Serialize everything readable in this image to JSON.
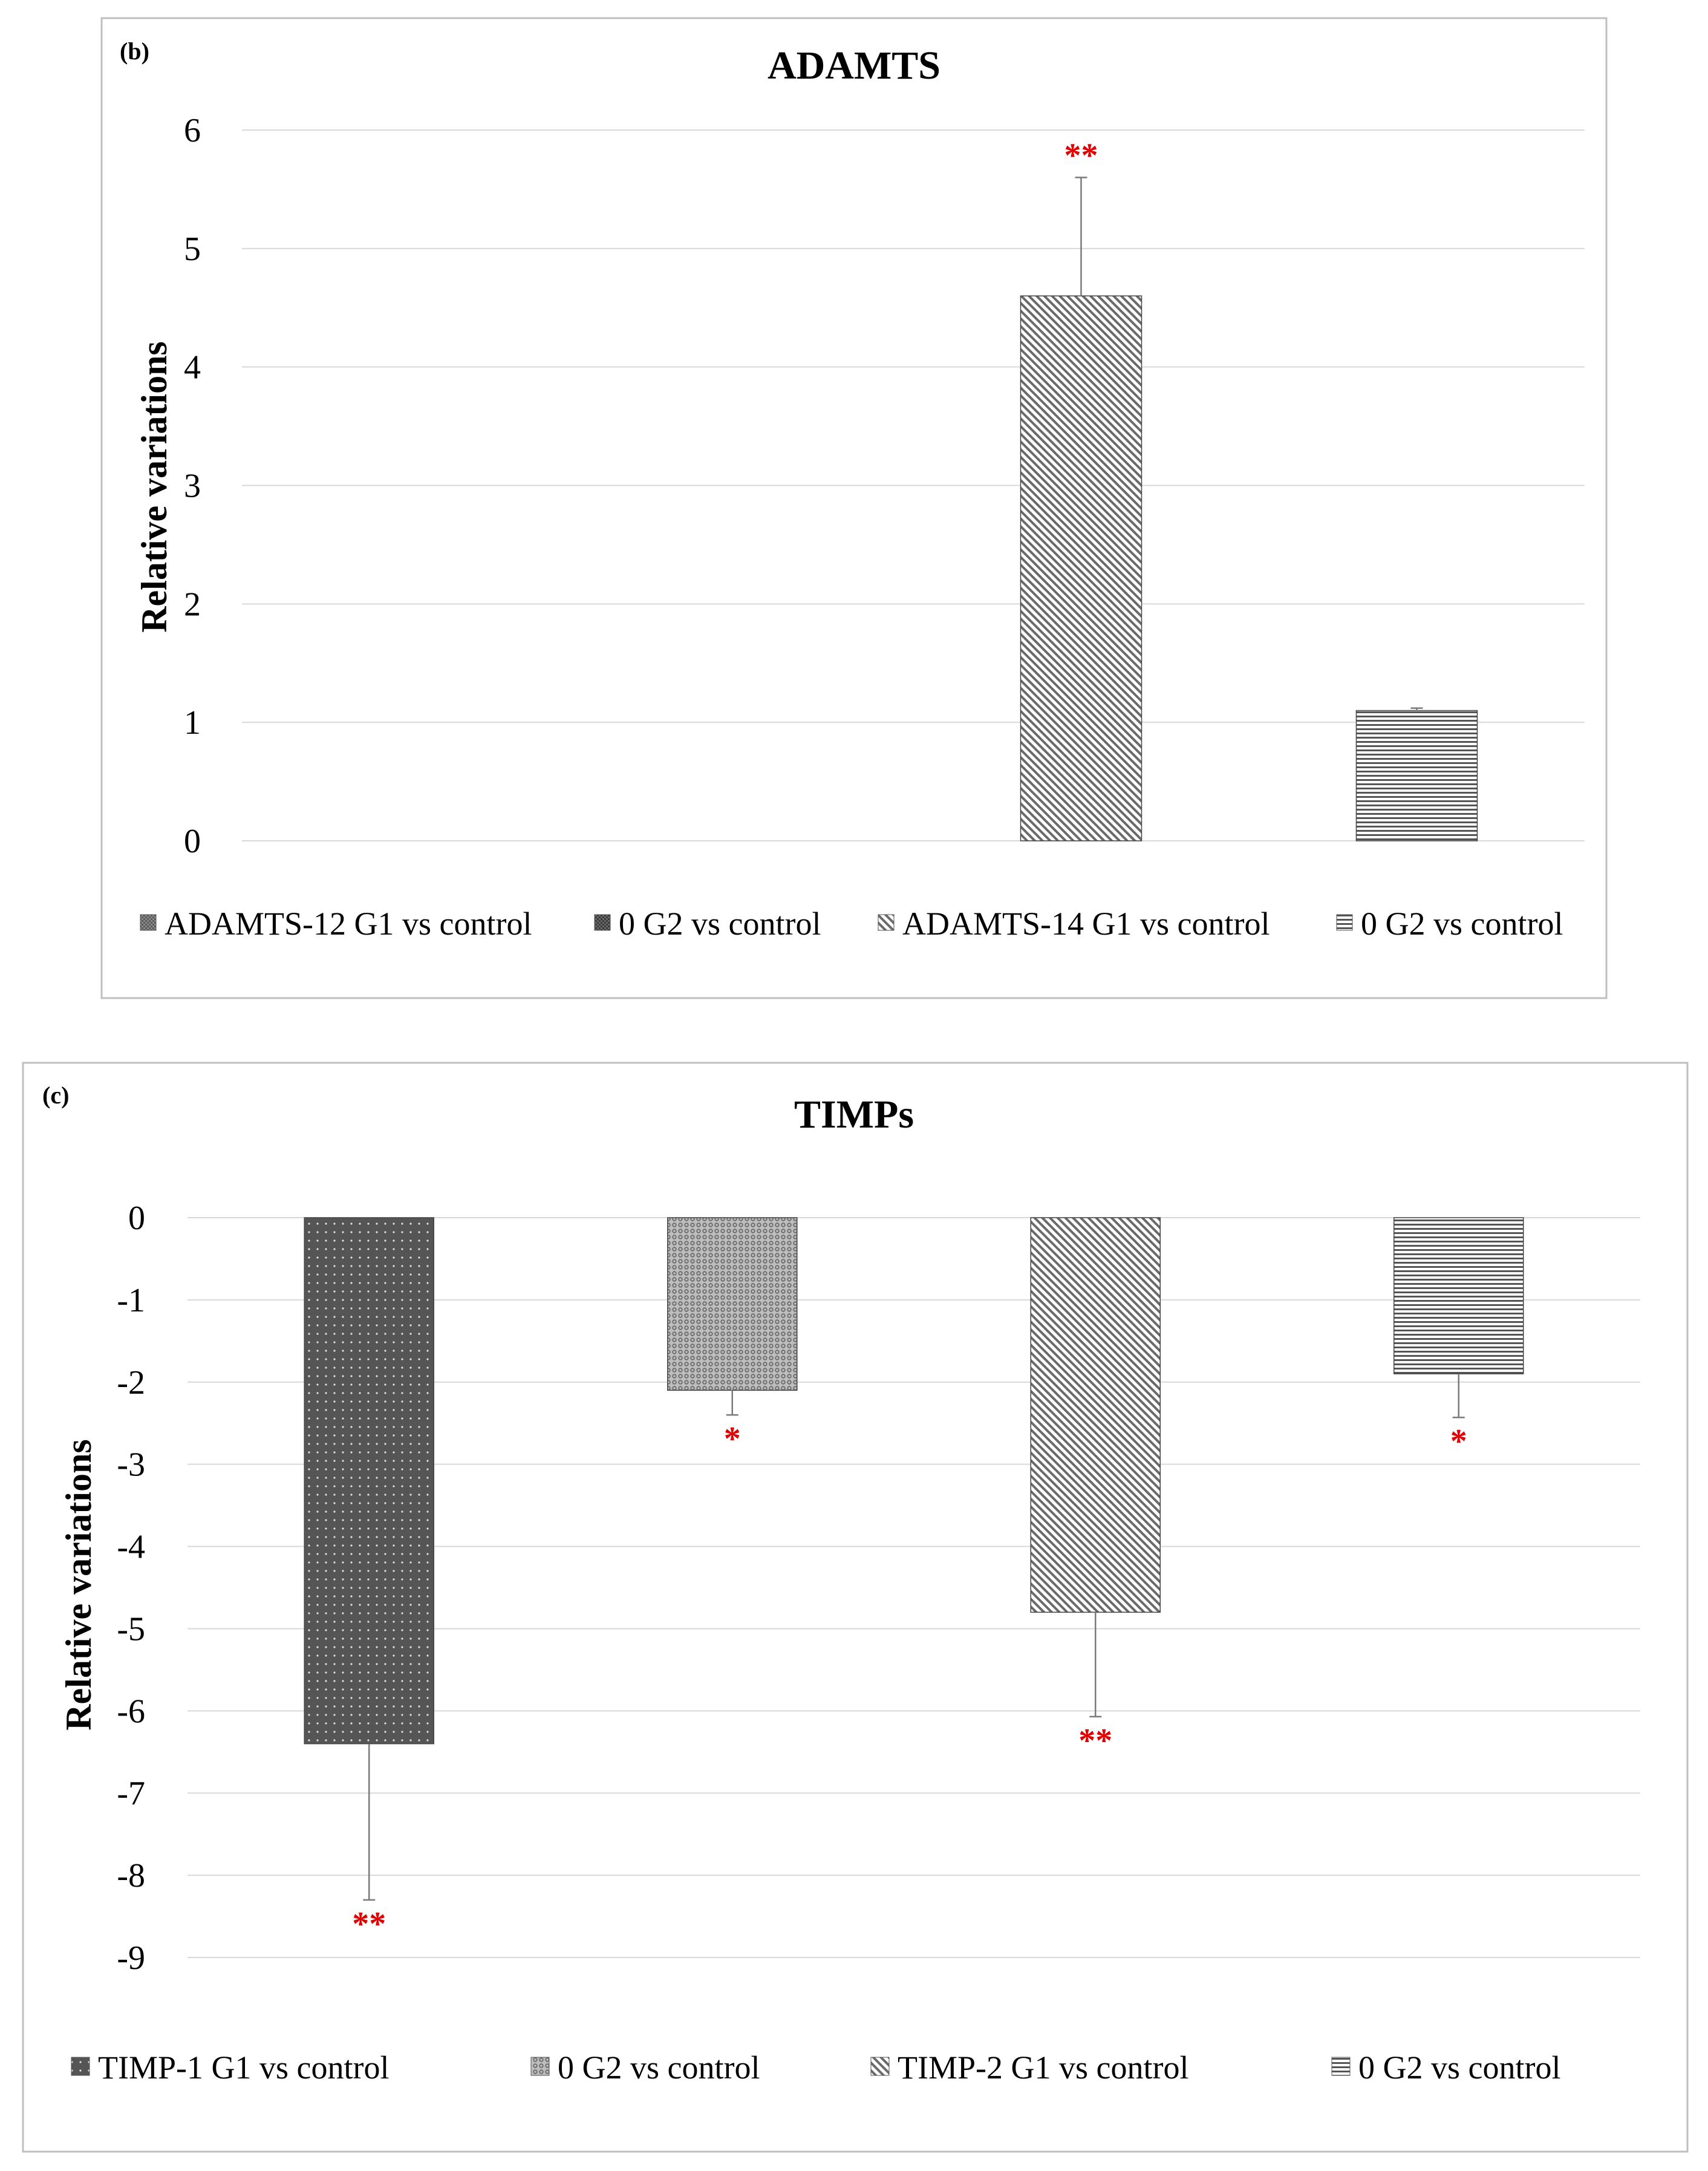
{
  "chart_data": [
    {
      "id": "b",
      "type": "bar",
      "panel_label": "(b)",
      "title": "ADAMTS",
      "xlabel": "",
      "ylabel": "Relative variations",
      "ylim": [
        0,
        6
      ],
      "yticks": [
        0,
        1,
        2,
        3,
        4,
        5,
        6
      ],
      "grid": true,
      "legend_position": "bottom",
      "series": [
        {
          "name": "ADAMTS-12 G1 vs control",
          "value": 0,
          "error": 0,
          "significance": "",
          "pattern": "dense"
        },
        {
          "name": "0 G2 vs control",
          "value": 0,
          "error": 0,
          "significance": "",
          "pattern": "dense-dark"
        },
        {
          "name": "ADAMTS-14 G1 vs control",
          "value": 4.6,
          "error": 1.0,
          "significance": "**",
          "pattern": "diagonal"
        },
        {
          "name": "0 G2 vs control",
          "value": 1.1,
          "error": 0.02,
          "significance": "",
          "pattern": "horizontal"
        }
      ]
    },
    {
      "id": "c",
      "type": "bar",
      "panel_label": "(c)",
      "title": "TIMPs",
      "xlabel": "",
      "ylabel": "Relative variations",
      "ylim": [
        -9,
        0
      ],
      "yticks": [
        0,
        -1,
        -2,
        -3,
        -4,
        -5,
        -6,
        -7,
        -8,
        -9
      ],
      "grid": true,
      "legend_position": "bottom",
      "series": [
        {
          "name": "TIMP-1 G1 vs control",
          "value": -6.4,
          "error": 1.9,
          "significance": "**",
          "pattern": "dots"
        },
        {
          "name": "0 G2 vs control",
          "value": -2.1,
          "error": 0.3,
          "significance": "*",
          "pattern": "checker"
        },
        {
          "name": "TIMP-2 G1 vs control",
          "value": -4.8,
          "error": 1.27,
          "significance": "**",
          "pattern": "diagonal"
        },
        {
          "name": "0 G2 vs control",
          "value": -1.9,
          "error": 0.53,
          "significance": "*",
          "pattern": "horizontal"
        }
      ]
    }
  ]
}
